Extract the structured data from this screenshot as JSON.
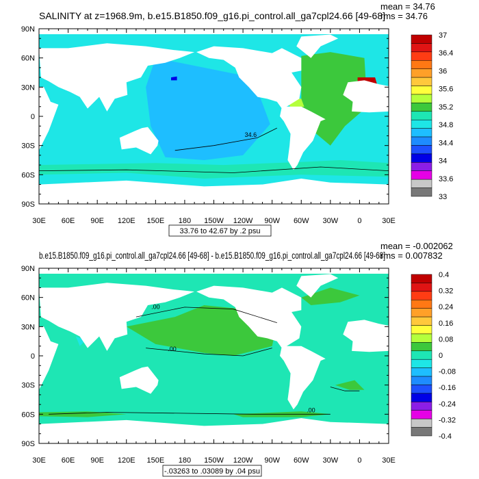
{
  "chart_data": [
    {
      "type": "heatmap",
      "title": "SALINITY at z=1968.9m, b.e15.B1850.f09_g16.pi_control.all_ga7cpl24.66 [49-68]",
      "stats": [
        "mean = 34.76",
        "rms = 34.76"
      ],
      "x_ticks": [
        "30E",
        "60E",
        "90E",
        "120E",
        "150E",
        "180",
        "150W",
        "120W",
        "90W",
        "60W",
        "30W",
        "0",
        "30E"
      ],
      "y_ticks": [
        "90N",
        "60N",
        "30N",
        "0",
        "30S",
        "60S",
        "90S"
      ],
      "xlim": [
        30,
        390
      ],
      "ylim": [
        -90,
        90
      ],
      "range_label": "33.76 to 42.67 by .2 psu",
      "contour_label": "34.6",
      "colorbar": {
        "labels": [
          "37",
          "36.4",
          "36",
          "35.6",
          "35.2",
          "34.8",
          "34.4",
          "34",
          "33.6",
          "33"
        ],
        "colors": [
          "#c00000",
          "#e01414",
          "#ff3c14",
          "#ff7814",
          "#ffa028",
          "#ffc83c",
          "#ffff3c",
          "#b4ff3c",
          "#3cc83c",
          "#1ee6b4",
          "#1ee6e6",
          "#1ebeff",
          "#1e8cff",
          "#1e50ff",
          "#0000e6",
          "#8c1ee6",
          "#e600e6",
          "#c8c8c8",
          "#787878"
        ]
      }
    },
    {
      "type": "heatmap",
      "title": "b.e15.B1850.f09_g16.pi_control.all_ga7cpl24.66 [49-68] - b.e15.B1850.f09_g16.pi_control.all_ga7cpl24.66 [49-68]",
      "stats": [
        "mean = -0.002062",
        "rms = 0.007832"
      ],
      "x_ticks": [
        "30E",
        "60E",
        "90E",
        "120E",
        "150E",
        "180",
        "150W",
        "120W",
        "90W",
        "60W",
        "30W",
        "0",
        "30E"
      ],
      "y_ticks": [
        "90N",
        "60N",
        "30N",
        "0",
        "30S",
        "60S",
        "90S"
      ],
      "xlim": [
        30,
        390
      ],
      "ylim": [
        -90,
        90
      ],
      "range_label": "-.03263 to .03089 by .04 psu",
      "contour_label": ".00",
      "colorbar": {
        "labels": [
          "0.4",
          "0.32",
          "0.24",
          "0.16",
          "0.08",
          "0",
          "-0.08",
          "-0.16",
          "-0.24",
          "-0.32",
          "-0.4"
        ],
        "colors": [
          "#c00000",
          "#e01414",
          "#ff3c14",
          "#ff7814",
          "#ffa028",
          "#ffc83c",
          "#ffff3c",
          "#b4ff3c",
          "#3cc83c",
          "#1ee6b4",
          "#1ee6e6",
          "#1ebeff",
          "#1e8cff",
          "#1e50ff",
          "#0000e6",
          "#8c1ee6",
          "#e600e6",
          "#c8c8c8",
          "#787878"
        ]
      }
    }
  ]
}
